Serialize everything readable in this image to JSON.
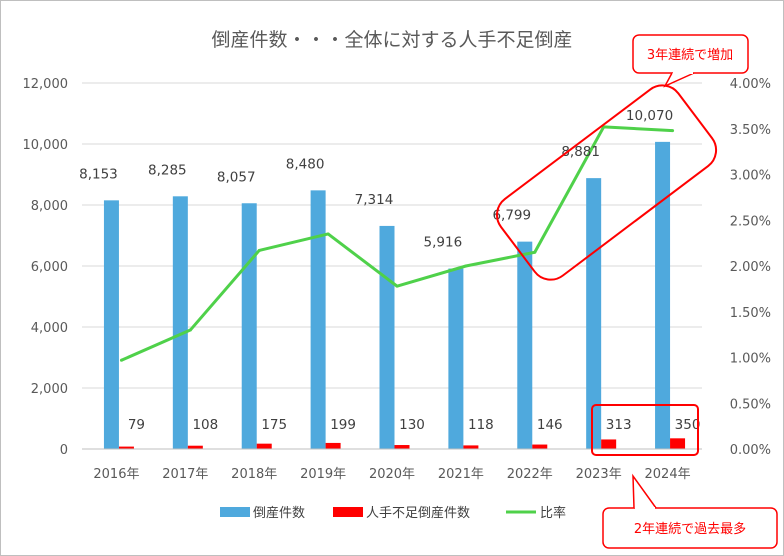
{
  "chart_data": {
    "type": "bar",
    "title": "倒産件数・・・全体に対する人手不足倒産",
    "categories": [
      "2016年",
      "2017年",
      "2018年",
      "2019年",
      "2020年",
      "2021年",
      "2022年",
      "2023年",
      "2024年"
    ],
    "series": [
      {
        "name": "倒産件数",
        "kind": "bar",
        "axis": "left",
        "color": "#4fa9dd",
        "values": [
          8153,
          8285,
          8057,
          8480,
          7314,
          5916,
          6799,
          8881,
          10070
        ],
        "labels": [
          "8,153",
          "8,285",
          "8,057",
          "8,480",
          "7,314",
          "5,916",
          "6,799",
          "8,881",
          "10,070"
        ]
      },
      {
        "name": "人手不足倒産件数",
        "kind": "bar",
        "axis": "left",
        "color": "#ff0000",
        "values": [
          79,
          108,
          175,
          199,
          130,
          118,
          146,
          313,
          350
        ],
        "labels": [
          "79",
          "108",
          "175",
          "199",
          "130",
          "118",
          "146",
          "313",
          "350"
        ]
      },
      {
        "name": "比率",
        "kind": "line",
        "axis": "right",
        "color": "#4fd14a",
        "values": [
          0.0097,
          0.013,
          0.0217,
          0.0235,
          0.0178,
          0.02,
          0.0215,
          0.0352,
          0.0348
        ]
      }
    ],
    "y_left": {
      "lim": [
        0,
        12000
      ],
      "ticks": [
        "0",
        "2,000",
        "4,000",
        "6,000",
        "8,000",
        "10,000",
        "12,000"
      ]
    },
    "y_right": {
      "lim": [
        0,
        0.04
      ],
      "ticks": [
        "0.00%",
        "0.50%",
        "1.00%",
        "1.50%",
        "2.00%",
        "2.50%",
        "3.00%",
        "3.50%",
        "4.00%"
      ]
    },
    "grid": true,
    "legend_position": "bottom",
    "annotations": [
      {
        "text": "3年連続で増加",
        "color": "#ff0000"
      },
      {
        "text": "2年連続で過去最多",
        "color": "#ff0000"
      }
    ]
  }
}
